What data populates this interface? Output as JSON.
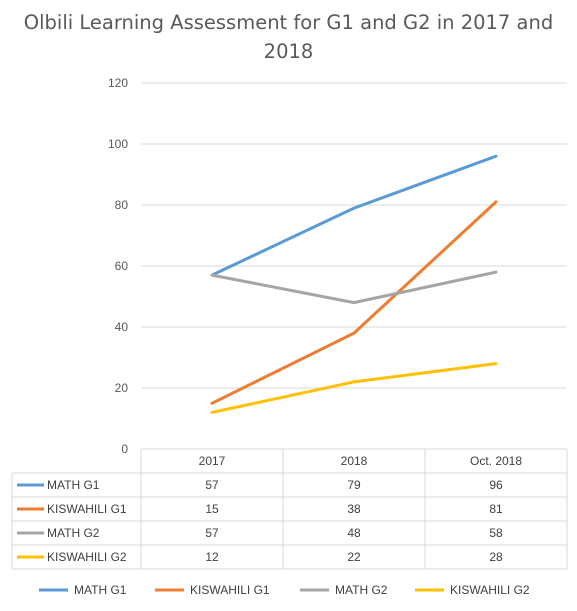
{
  "chart_data": {
    "type": "line",
    "title": "Olbili Learning Assessment for G1 and G2 in 2017 and 2018",
    "categories": [
      "2017",
      "2018",
      "Oct. 2018"
    ],
    "ylim": [
      0,
      120
    ],
    "yticks": [
      0,
      20,
      40,
      60,
      80,
      100,
      120
    ],
    "grid": true,
    "legend_position": "bottom",
    "data_table": true,
    "series": [
      {
        "name": "MATH G1",
        "values": [
          57,
          79,
          96
        ],
        "color": "#5B9BD5"
      },
      {
        "name": "KISWAHILI G1",
        "values": [
          15,
          38,
          81
        ],
        "color": "#ED7D31"
      },
      {
        "name": "MATH G2",
        "values": [
          57,
          48,
          58
        ],
        "color": "#A5A5A5"
      },
      {
        "name": "KISWAHILI G2",
        "values": [
          12,
          22,
          28
        ],
        "color": "#FFC000"
      }
    ]
  }
}
